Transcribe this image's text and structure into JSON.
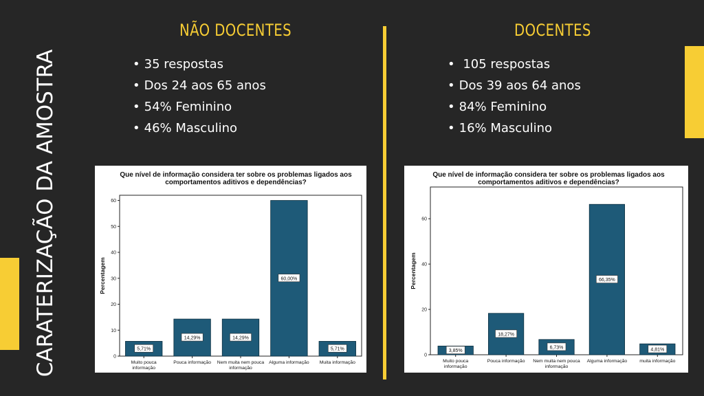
{
  "slide": {
    "side_title": "CARATERIZAÇÃO DA AMOSTRA",
    "accent_color": "#f7cd34",
    "background": "#262626"
  },
  "columns": [
    {
      "title": "NÃO DOCENTES",
      "bullets": [
        "35 respostas",
        "Dos 24 aos 65 anos",
        "54% Feminino",
        "46% Masculino"
      ]
    },
    {
      "title": "DOCENTES",
      "bullets": [
        " 105 respostas",
        "Dos 39 aos 64 anos",
        "84% Feminino",
        "16% Masculino"
      ]
    }
  ],
  "chart_data": [
    {
      "type": "bar",
      "title": "Que nível de informação considera ter sobre os problemas ligados aos comportamentos aditivos e dependências?",
      "ylabel": "Percentagem",
      "xlabel": "",
      "ylim": [
        0,
        62
      ],
      "yticks": [
        0,
        10,
        20,
        30,
        40,
        50,
        60
      ],
      "categories": [
        "Muito pouca informação",
        "Pouca informação",
        "Nem muita nem pouca informação",
        "Alguma informação",
        "Muita informação"
      ],
      "values": [
        5.71,
        14.29,
        14.29,
        60.0,
        5.71
      ],
      "data_labels": [
        "5,71%",
        "14,29%",
        "14,29%",
        "60,00%",
        "5,71%"
      ],
      "bar_color": "#1e5a78",
      "grid": false
    },
    {
      "type": "bar",
      "title": "Que nível de informação considera ter sobre os problemas ligados aos comportamentos aditivos e dependências?",
      "ylabel": "Percentagem",
      "xlabel": "",
      "ylim": [
        0,
        74
      ],
      "yticks": [
        0,
        20,
        40,
        60
      ],
      "categories": [
        "Muito pouca informação",
        "Pouca informação",
        "Nem muita nem pouca informação",
        "Alguma informação",
        "muita informação"
      ],
      "values": [
        3.85,
        18.27,
        6.73,
        66.35,
        4.81
      ],
      "data_labels": [
        "3,85%",
        "18,27%",
        "6,73%",
        "66,35%",
        "4,81%"
      ],
      "bar_color": "#1e5a78",
      "grid": false
    }
  ]
}
